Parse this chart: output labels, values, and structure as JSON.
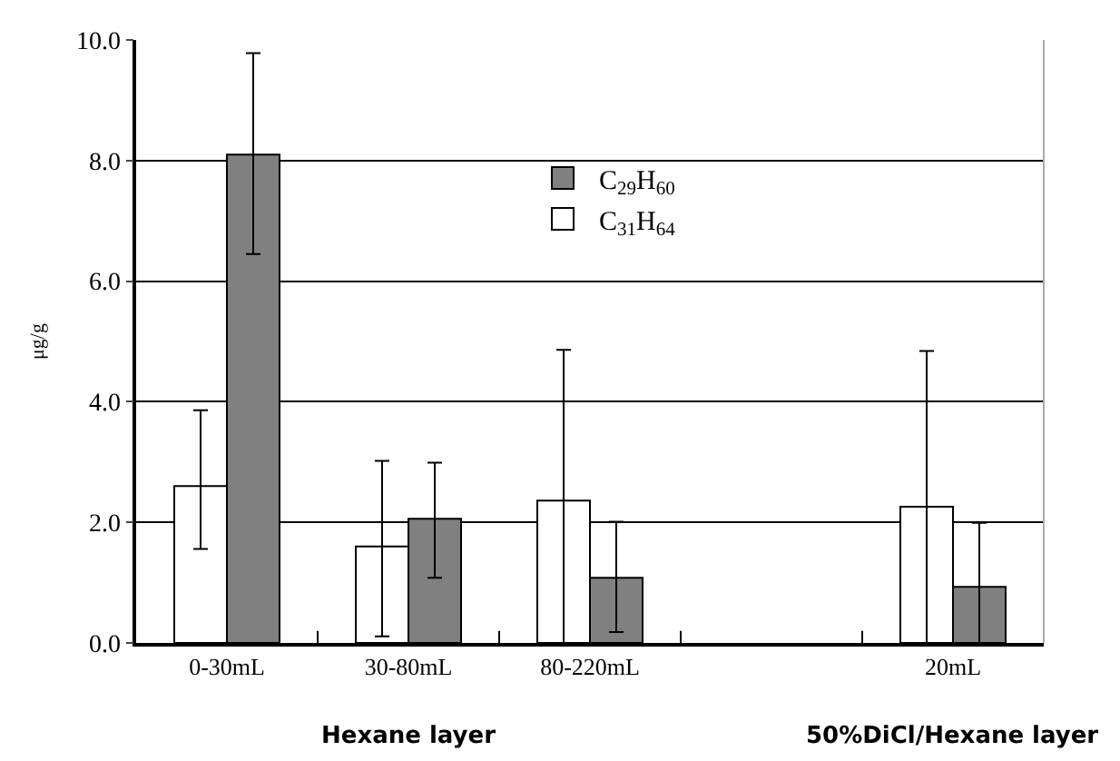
{
  "chart_data": {
    "type": "bar",
    "ylabel": "μg/g",
    "categories": [
      "0-30mL",
      "30-80mL",
      "80-220mL",
      null,
      "20mL"
    ],
    "series": [
      {
        "name": "C$_{31}$H$_{64}$",
        "color": "#ffffff",
        "values": [
          2.6,
          1.6,
          2.36,
          null,
          2.26
        ],
        "errors": [
          [
            1.56,
            3.86
          ],
          [
            0.11,
            3.02
          ],
          [
            0.0,
            4.86
          ],
          null,
          [
            0.0,
            4.84
          ]
        ]
      },
      {
        "name": "C$_{29}$H$_{60}$",
        "color": "#808080",
        "values": [
          8.1,
          2.06,
          1.08,
          null,
          0.93
        ],
        "errors": [
          [
            6.45,
            9.78
          ],
          [
            1.08,
            2.99
          ],
          [
            0.18,
            2.01
          ],
          null,
          [
            0.0,
            1.99
          ]
        ]
      }
    ],
    "ylim": [
      0,
      10
    ],
    "yticks": [
      {
        "value": 0,
        "label": "0.0"
      },
      {
        "value": 2,
        "label": "2.0"
      },
      {
        "value": 4,
        "label": "4.0"
      },
      {
        "value": 6,
        "label": "6.0"
      },
      {
        "value": 8,
        "label": "8.0"
      },
      {
        "value": 10,
        "label": "10.0"
      }
    ],
    "grid": "y",
    "legend": "top",
    "annotations": [
      "Hexane layer",
      "50%DiCl/Hexane layer"
    ]
  }
}
